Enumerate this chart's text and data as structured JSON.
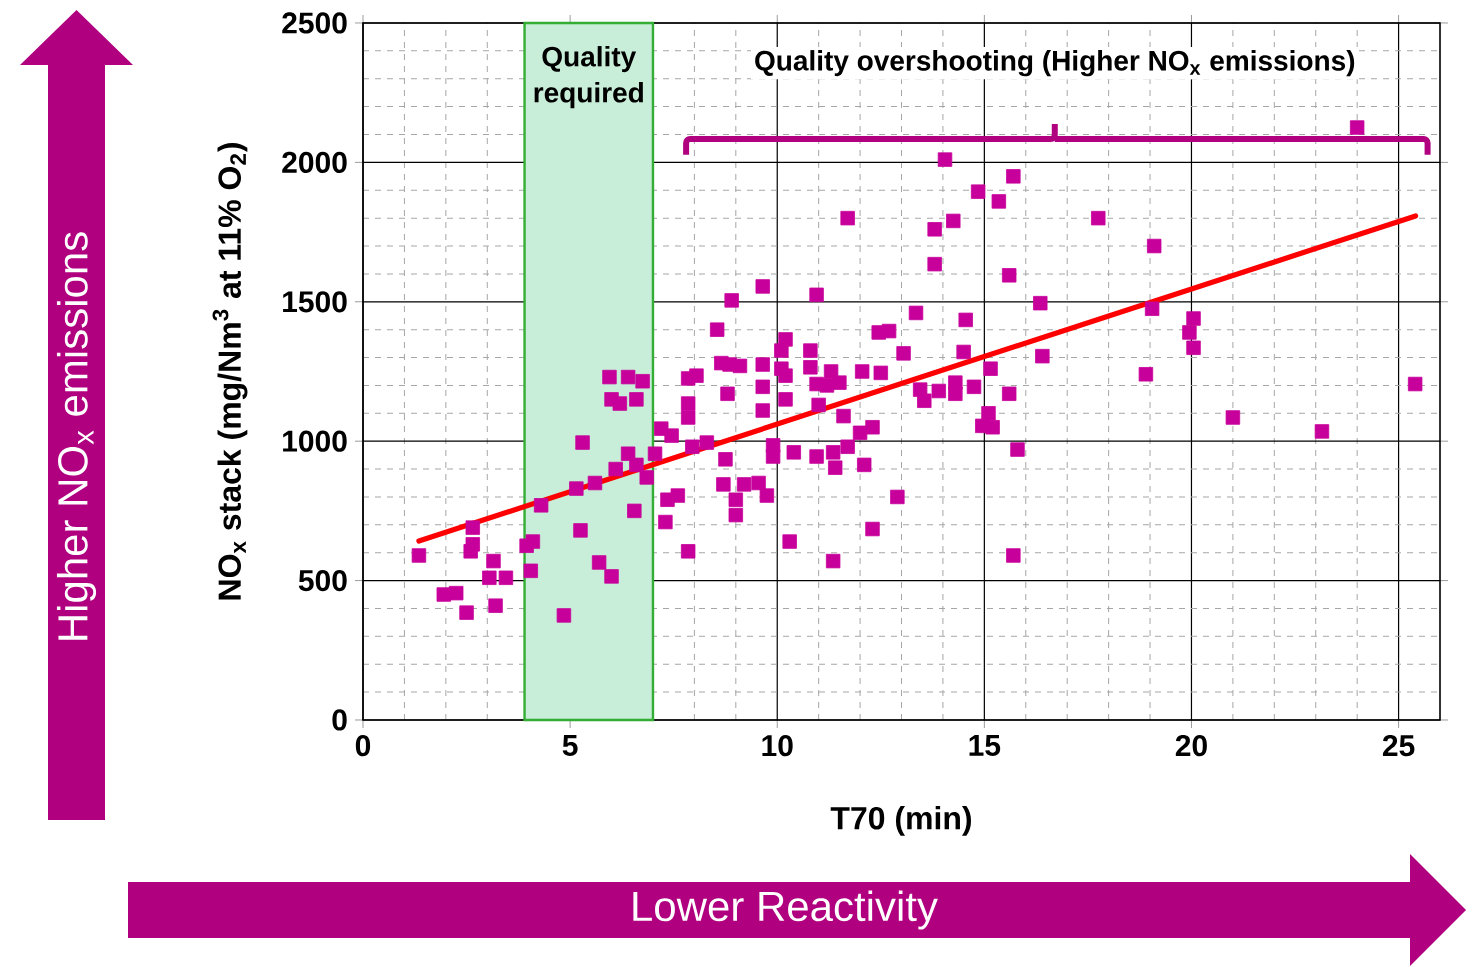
{
  "chart_data": {
    "type": "scatter",
    "xlabel": "T70 (min)",
    "ylabel": "NO$_{x}$ stack (mg/Nm$^{3}$ at 11% O$_{2}$)",
    "xlim": [
      0,
      26
    ],
    "ylim": [
      0,
      2500
    ],
    "xticks": [
      0,
      5,
      10,
      15,
      20,
      25
    ],
    "yticks": [
      0,
      500,
      1000,
      1500,
      2000,
      2500
    ],
    "grid": true,
    "bands": [
      {
        "axis": "x",
        "from": 3.9,
        "to": 7,
        "label": "Quality required",
        "color": "#c8eed9"
      }
    ],
    "annotations": [
      "Quality overshooting (Higher NO$_{x}$ emissions)",
      "Higher NO$_{x}$ emissions",
      "Lower Reactivity"
    ],
    "series": [
      {
        "color": "#c8009b",
        "marker": "square",
        "x": [
          1.35,
          1.95,
          2.25,
          2.5,
          2.6,
          2.65,
          2.65,
          3.05,
          3.15,
          3.2,
          3.45,
          3.95,
          4.1,
          4.05,
          4.3,
          4.85,
          5.15,
          5.3,
          5.25,
          5.6,
          5.7,
          6.0,
          5.95,
          6.0,
          6.2,
          6.1,
          6.4,
          6.4,
          6.6,
          6.6,
          6.55,
          6.75,
          6.85,
          7.05,
          7.2,
          7.45,
          7.95,
          7.35,
          7.6,
          7.3,
          7.85,
          7.85,
          8.05,
          7.85,
          7.85,
          9.65,
          8.9,
          10.95,
          8.55,
          10.2,
          10.1,
          10.8,
          8.65,
          8.85,
          9.1,
          9.65,
          10.1,
          10.2,
          10.8,
          11.3,
          8.8,
          9.65,
          10.2,
          10.95,
          11.2,
          11.5,
          12.05,
          12.5,
          12.45,
          12.7,
          13.35,
          14.55,
          13.05,
          14.5,
          13.45,
          13.55,
          13.9,
          14.3,
          14.3,
          14.75,
          15.15,
          15.1,
          14.95,
          15.2,
          9.65,
          11.0,
          11.6,
          12.3,
          12.0,
          8.3,
          8.75,
          9.9,
          9.9,
          10.4,
          10.95,
          11.35,
          11.4,
          11.7,
          12.1,
          8.7,
          9.2,
          9.55,
          9.75,
          9.0,
          9.0,
          12.9,
          10.3,
          12.3,
          11.35,
          14.05,
          15.7,
          14.85,
          15.35,
          11.7,
          14.25,
          13.8,
          17.75,
          13.8,
          15.6,
          16.35,
          16.4,
          15.6,
          19.1,
          19.05,
          20.05,
          19.95,
          20.05,
          18.9,
          25.4,
          21.0,
          23.15,
          15.8,
          24.0,
          15.7
        ],
        "values": [
          590,
          450,
          455,
          385,
          605,
          630,
          690,
          510,
          570,
          410,
          510,
          625,
          640,
          535,
          770,
          375,
          830,
          995,
          680,
          850,
          565,
          515,
          1230,
          1150,
          1135,
          900,
          1230,
          955,
          1150,
          915,
          750,
          1215,
          870,
          955,
          1045,
          1020,
          980,
          790,
          805,
          710,
          605,
          1225,
          1235,
          1135,
          1085,
          1555,
          1505,
          1525,
          1400,
          1365,
          1325,
          1325,
          1280,
          1275,
          1270,
          1275,
          1260,
          1235,
          1265,
          1250,
          1170,
          1195,
          1150,
          1205,
          1200,
          1210,
          1250,
          1245,
          1390,
          1395,
          1460,
          1435,
          1315,
          1320,
          1185,
          1145,
          1180,
          1210,
          1170,
          1195,
          1260,
          1100,
          1055,
          1050,
          1110,
          1130,
          1090,
          1050,
          1030,
          995,
          935,
          985,
          945,
          960,
          945,
          960,
          905,
          980,
          915,
          845,
          845,
          850,
          805,
          790,
          735,
          800,
          640,
          685,
          570,
          2010,
          1950,
          1895,
          1860,
          1800,
          1790,
          1760,
          1800,
          1635,
          1595,
          1495,
          1305,
          1170,
          1700,
          1475,
          1440,
          1390,
          1335,
          1240,
          1205,
          1085,
          1035,
          970,
          2125,
          590
        ]
      },
      {
        "type": "line",
        "marker": "none",
        "color": "#ff0000",
        "x": [
          1.35,
          25.41
        ],
        "values": [
          642,
          1808
        ]
      }
    ]
  }
}
